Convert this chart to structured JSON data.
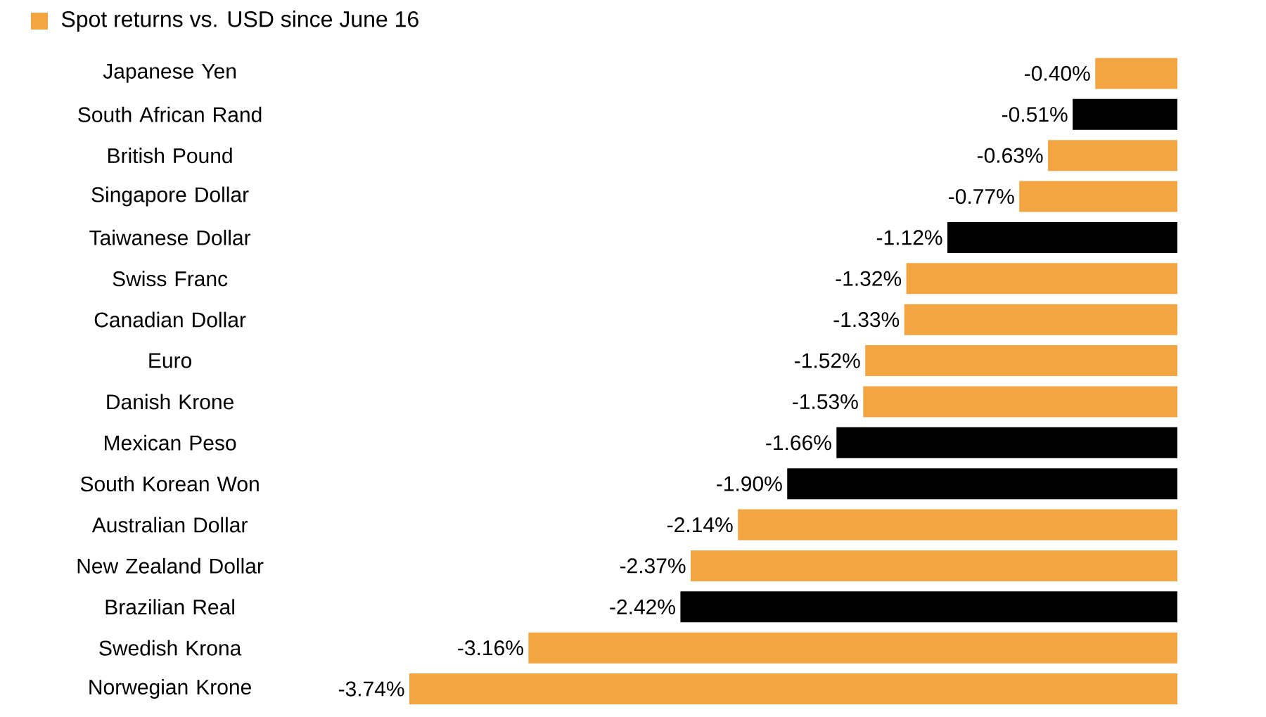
{
  "chart_data": {
    "type": "bar",
    "orientation": "horizontal",
    "legend": "top left",
    "categories": [
      "Japanese Yen",
      "South African Rand",
      "British Pound",
      "Singapore Dollar",
      "Taiwanese Dollar",
      "Swiss Franc",
      "Canadian Dollar",
      "Euro",
      "Danish Krone",
      "Mexican Peso",
      "South Korean Won",
      "Australian Dollar",
      "New Zealand Dollar",
      "Brazilian Real",
      "Swedish Krona",
      "Norwegian Krone"
    ],
    "xlim": [
      -3.74,
      0
    ],
    "series": [
      {
        "name": "Spot returns vs. USD since June 16",
        "color": "#f2a541",
        "values": [
          -0.4,
          -0.51,
          -0.63,
          -0.77,
          -1.12,
          -1.32,
          -1.33,
          -1.52,
          -1.53,
          -1.66,
          -1.9,
          -2.14,
          -2.37,
          -2.42,
          -3.16,
          -3.74
        ],
        "colors": [
          "#f2a541",
          "#000000",
          "#f2a541",
          "#f2a541",
          "#000000",
          "#f2a541",
          "#f2a541",
          "#f2a541",
          "#f2a541",
          "#000000",
          "#000000",
          "#f2a541",
          "#f2a541",
          "#000000",
          "#f2a541",
          "#f2a541"
        ],
        "value_labels": [
          "-0.40%",
          "-0.51%",
          "-0.63%",
          "-0.77%",
          "-1.12%",
          "-1.32%",
          "-1.33%",
          "-1.52%",
          "-1.53%",
          "-1.66%",
          "-1.90%",
          "-2.14%",
          "-2.37%",
          "-2.42%",
          "-3.16%",
          "-3.74%"
        ]
      }
    ]
  }
}
